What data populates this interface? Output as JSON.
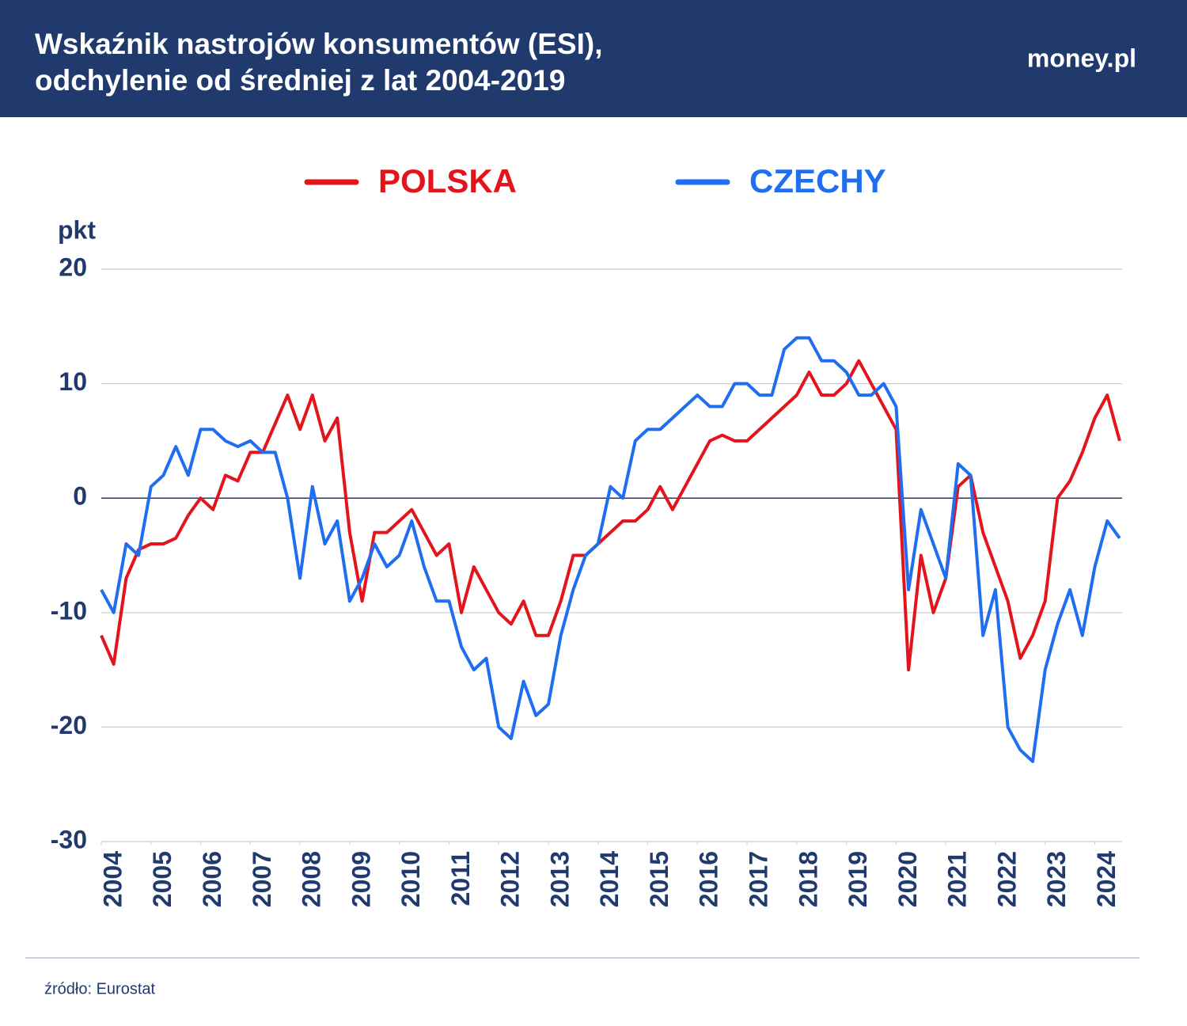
{
  "chart_data": {
    "type": "line",
    "title": [
      "Wskaźnik nastrojów konsumentów (ESI),",
      "odchylenie od średniej z lat 2004-2019"
    ],
    "logo": "money.pl",
    "y_label": "pkt",
    "source": "źródło: Eurostat",
    "xlim": [
      2004,
      2024.55
    ],
    "xticks": [
      2004,
      2005,
      2006,
      2007,
      2008,
      2009,
      2010,
      2011,
      2012,
      2013,
      2014,
      2015,
      2016,
      2017,
      2018,
      2019,
      2020,
      2021,
      2022,
      2023,
      2024
    ],
    "ylim": [
      -30,
      20
    ],
    "yticks": [
      20,
      10,
      0,
      -10,
      -20,
      -30
    ],
    "grid": true,
    "legend": "top",
    "x": [
      2004,
      2004.25,
      2004.5,
      2004.75,
      2005,
      2005.25,
      2005.5,
      2005.75,
      2006,
      2006.25,
      2006.5,
      2006.75,
      2007,
      2007.25,
      2007.5,
      2007.75,
      2008,
      2008.25,
      2008.5,
      2008.75,
      2009,
      2009.25,
      2009.5,
      2009.75,
      2010,
      2010.25,
      2010.5,
      2010.75,
      2011,
      2011.25,
      2011.5,
      2011.75,
      2012,
      2012.25,
      2012.5,
      2012.75,
      2013,
      2013.25,
      2013.5,
      2013.75,
      2014,
      2014.25,
      2014.5,
      2014.75,
      2015,
      2015.25,
      2015.5,
      2015.75,
      2016,
      2016.25,
      2016.5,
      2016.75,
      2017,
      2017.25,
      2017.5,
      2017.75,
      2018,
      2018.25,
      2018.5,
      2018.75,
      2019,
      2019.25,
      2019.5,
      2019.75,
      2020,
      2020.25,
      2020.5,
      2020.75,
      2021,
      2021.25,
      2021.5,
      2021.75,
      2022,
      2022.25,
      2022.5,
      2022.75,
      2023,
      2023.25,
      2023.5,
      2023.75,
      2024,
      2024.25,
      2024.5
    ],
    "series": [
      {
        "name": "POLSKA",
        "color": "#e3141b",
        "values": [
          -12,
          -14.5,
          -7,
          -4.5,
          -4,
          -4,
          -3.5,
          -1.5,
          0,
          -1,
          2,
          1.5,
          4,
          4,
          6.5,
          9,
          6,
          9,
          5,
          7,
          -3,
          -9,
          -3,
          -3,
          -2,
          -1,
          -3,
          -5,
          -4,
          -10,
          -6,
          -8,
          -10,
          -11,
          -9,
          -12,
          -12,
          -9,
          -5,
          -5,
          -4,
          -3,
          -2,
          -2,
          -1,
          1,
          -1,
          1,
          3,
          5,
          5.5,
          5,
          5,
          6,
          7,
          8,
          9,
          11,
          9,
          9,
          10,
          12,
          10,
          8,
          6,
          -15,
          -5,
          -10,
          -7,
          1,
          2,
          -3,
          -6,
          -9,
          -14,
          -12,
          -9,
          0,
          1.5,
          4,
          7,
          9,
          5
        ]
      },
      {
        "name": "CZECHY",
        "color": "#1f6ef0",
        "values": [
          -8,
          -10,
          -4,
          -5,
          1,
          2,
          4.5,
          2,
          6,
          6,
          5,
          4.5,
          5,
          4,
          4,
          0,
          -7,
          1,
          -4,
          -2,
          -9,
          -7,
          -4,
          -6,
          -5,
          -2,
          -6,
          -9,
          -9,
          -13,
          -15,
          -14,
          -20,
          -21,
          -16,
          -19,
          -18,
          -12,
          -8,
          -5,
          -4,
          1,
          0,
          5,
          6,
          6,
          7,
          8,
          9,
          8,
          8,
          10,
          10,
          9,
          9,
          13,
          14,
          14,
          12,
          12,
          11,
          9,
          9,
          10,
          8,
          -8,
          -1,
          -4,
          -7,
          3,
          2,
          -12,
          -8,
          -20,
          -22,
          -23,
          -15,
          -11,
          -8,
          -12,
          -6,
          -2,
          -3.5
        ]
      }
    ]
  }
}
